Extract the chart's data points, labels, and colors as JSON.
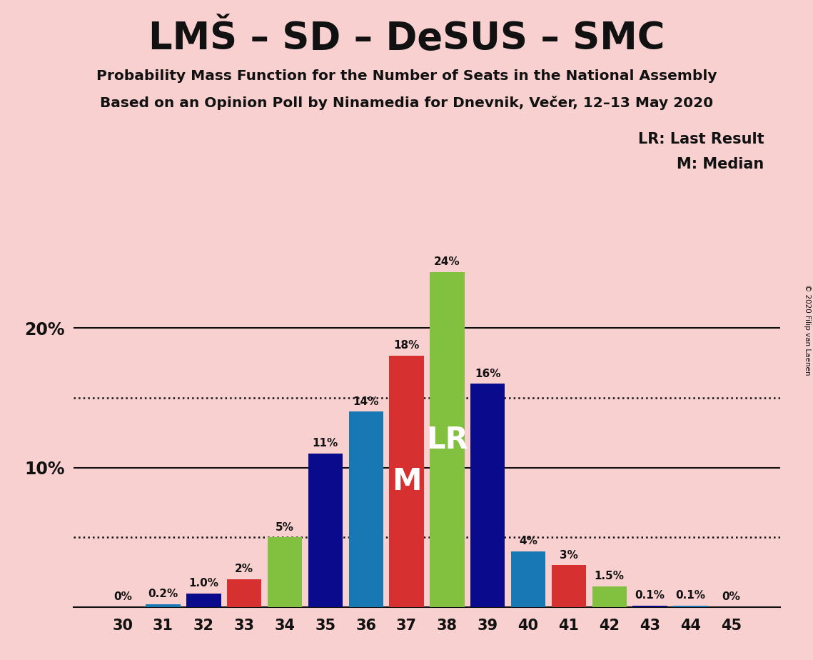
{
  "title": "LMŠ – SD – DeSUS – SMC",
  "subtitle1": "Probability Mass Function for the Number of Seats in the National Assembly",
  "subtitle2": "Based on an Opinion Poll by Ninamedia for Dnevnik, Večer, 12–13 May 2020",
  "copyright": "© 2020 Filip van Laenen",
  "x_labels": [
    30,
    31,
    32,
    33,
    34,
    35,
    36,
    37,
    38,
    39,
    40,
    41,
    42,
    43,
    44,
    45
  ],
  "values": [
    0.0,
    0.2,
    1.0,
    2.0,
    5.0,
    11.0,
    14.0,
    18.0,
    24.0,
    16.0,
    4.0,
    3.0,
    1.5,
    0.1,
    0.1,
    0.0
  ],
  "label_texts": [
    "0%",
    "0.2%",
    "1.0%",
    "2%",
    "5%",
    "11%",
    "14%",
    "18%",
    "24%",
    "16%",
    "4%",
    "3%",
    "1.5%",
    "0.1%",
    "0.1%",
    "0%"
  ],
  "colors": {
    "dark_blue": "#0A0A8C",
    "steel_blue": "#1878B4",
    "red": "#D63030",
    "green": "#82C040",
    "background": "#F9D0D0"
  },
  "bar_colors": [
    "#0A0A8C",
    "#1878B4",
    "#0A0A8C",
    "#D63030",
    "#82C040",
    "#0A0A8C",
    "#1878B4",
    "#D63030",
    "#82C040",
    "#0A0A8C",
    "#1878B4",
    "#D63030",
    "#82C040",
    "#0A0A8C",
    "#1878B4",
    "#0A0A8C"
  ],
  "median_seat": 37,
  "lr_seat": 38,
  "median_label": "M",
  "lr_label": "LR",
  "dotted_lines": [
    5.0,
    15.0
  ],
  "solid_lines": [
    10.0,
    20.0
  ],
  "ylim": [
    0,
    26
  ],
  "legend_lr": "LR: Last Result",
  "legend_m": "M: Median"
}
